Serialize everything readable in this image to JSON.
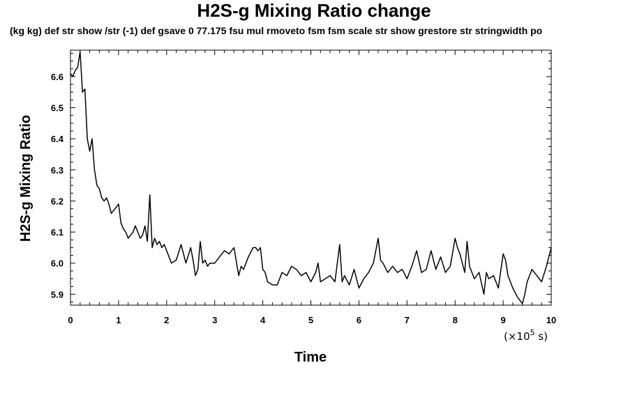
{
  "chart_data": {
    "type": "line",
    "title": "H2S-g Mixing Ratio change",
    "subtitle": "(kg kg) def str show /str (-1) def gsave 0 77.175 fsu mul rmoveto fsm fsm scale str show grestore str stringwidth po",
    "xlabel": "Time",
    "ylabel": "H2S-g Mixing Ratio",
    "x_unit_label": "(×10",
    "x_unit_exponent": "5",
    "x_unit_suffix": " s)",
    "xlim": [
      0,
      10
    ],
    "ylim": [
      5.865,
      6.685
    ],
    "x_ticks": [
      "0",
      "1",
      "2",
      "3",
      "4",
      "5",
      "6",
      "7",
      "8",
      "9",
      "10"
    ],
    "y_ticks": [
      "5.9",
      "6.0",
      "6.1",
      "6.2",
      "6.3",
      "6.4",
      "6.5",
      "6.6"
    ],
    "line_color": "#000000",
    "grid": false,
    "series": [
      {
        "x": [
          0.0,
          0.05,
          0.1,
          0.15,
          0.2,
          0.25,
          0.3,
          0.35,
          0.4,
          0.45,
          0.5,
          0.55,
          0.6,
          0.65,
          0.7,
          0.75,
          0.8,
          0.85,
          0.9,
          0.95,
          1.0,
          1.05,
          1.1,
          1.15,
          1.2,
          1.25,
          1.3,
          1.35,
          1.4,
          1.45,
          1.5,
          1.55,
          1.6,
          1.65,
          1.7,
          1.75,
          1.8,
          1.85,
          1.9,
          1.95,
          2.0,
          2.1,
          2.2,
          2.3,
          2.4,
          2.5,
          2.55,
          2.6,
          2.65,
          2.7,
          2.75,
          2.8,
          2.85,
          2.9,
          3.0,
          3.1,
          3.2,
          3.3,
          3.4,
          3.5,
          3.55,
          3.6,
          3.7,
          3.8,
          3.85,
          3.9,
          3.95,
          4.0,
          4.05,
          4.1,
          4.2,
          4.3,
          4.4,
          4.5,
          4.6,
          4.7,
          4.8,
          4.9,
          5.0,
          5.1,
          5.15,
          5.2,
          5.3,
          5.4,
          5.5,
          5.6,
          5.65,
          5.7,
          5.8,
          5.9,
          6.0,
          6.1,
          6.2,
          6.3,
          6.4,
          6.45,
          6.5,
          6.6,
          6.7,
          6.8,
          6.9,
          7.0,
          7.1,
          7.2,
          7.3,
          7.4,
          7.5,
          7.6,
          7.7,
          7.8,
          7.9,
          8.0,
          8.05,
          8.1,
          8.2,
          8.25,
          8.3,
          8.4,
          8.5,
          8.6,
          8.65,
          8.7,
          8.8,
          8.9,
          9.0,
          9.05,
          9.1,
          9.2,
          9.3,
          9.4,
          9.45,
          9.5,
          9.6,
          9.7,
          9.8,
          9.9,
          10.0
        ],
        "y": [
          6.61,
          6.6,
          6.62,
          6.63,
          6.68,
          6.55,
          6.56,
          6.4,
          6.36,
          6.4,
          6.3,
          6.25,
          6.24,
          6.21,
          6.2,
          6.21,
          6.19,
          6.16,
          6.17,
          6.18,
          6.19,
          6.13,
          6.11,
          6.1,
          6.08,
          6.09,
          6.1,
          6.12,
          6.1,
          6.08,
          6.09,
          6.12,
          6.07,
          6.22,
          6.05,
          6.08,
          6.06,
          6.07,
          6.05,
          6.06,
          6.04,
          6.0,
          6.01,
          6.06,
          6.0,
          6.05,
          6.01,
          5.96,
          5.98,
          6.07,
          6.0,
          6.01,
          5.99,
          6.0,
          6.0,
          6.02,
          6.04,
          6.03,
          6.05,
          5.96,
          5.99,
          5.98,
          6.02,
          6.05,
          6.05,
          6.04,
          6.05,
          5.98,
          5.97,
          5.94,
          5.93,
          5.93,
          5.97,
          5.96,
          5.99,
          5.98,
          5.96,
          5.97,
          5.94,
          5.97,
          6.0,
          5.94,
          5.95,
          5.96,
          5.94,
          6.06,
          5.94,
          5.96,
          5.93,
          5.98,
          5.92,
          5.95,
          5.97,
          6.0,
          6.08,
          6.01,
          6.0,
          5.97,
          5.99,
          5.97,
          5.98,
          5.95,
          5.99,
          6.04,
          5.97,
          5.98,
          6.04,
          5.98,
          6.02,
          5.97,
          5.99,
          6.08,
          6.05,
          6.03,
          5.97,
          6.07,
          5.99,
          5.95,
          5.97,
          5.9,
          5.97,
          5.95,
          5.96,
          5.92,
          6.03,
          6.01,
          5.96,
          5.92,
          5.89,
          5.87,
          5.9,
          5.94,
          5.98,
          5.96,
          5.94,
          5.99,
          6.05
        ]
      }
    ]
  }
}
